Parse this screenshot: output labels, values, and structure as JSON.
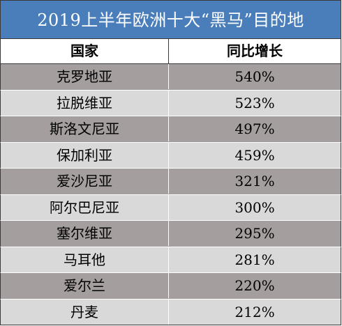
{
  "title": "2019上半年欧洲十大“黑马”目的地",
  "columns": [
    "国家",
    "同比增长"
  ],
  "rows": [
    {
      "country": "克罗地亚",
      "growth": "540%"
    },
    {
      "country": "拉脱维亚",
      "growth": "523%"
    },
    {
      "country": "斯洛文尼亚",
      "growth": "497%"
    },
    {
      "country": "保加利亚",
      "growth": "459%"
    },
    {
      "country": "爱沙尼亚",
      "growth": "321%"
    },
    {
      "country": "阿尔巴尼亚",
      "growth": "300%"
    },
    {
      "country": "塞尔维亚",
      "growth": "295%"
    },
    {
      "country": "马耳他",
      "growth": "281%"
    },
    {
      "country": "爱尔兰",
      "growth": "220%"
    },
    {
      "country": "丹麦",
      "growth": "212%"
    }
  ],
  "colors": {
    "title_bg": "#4a7ebb",
    "row_dark": "#a49e9e",
    "row_light": "#d9d9d9"
  }
}
